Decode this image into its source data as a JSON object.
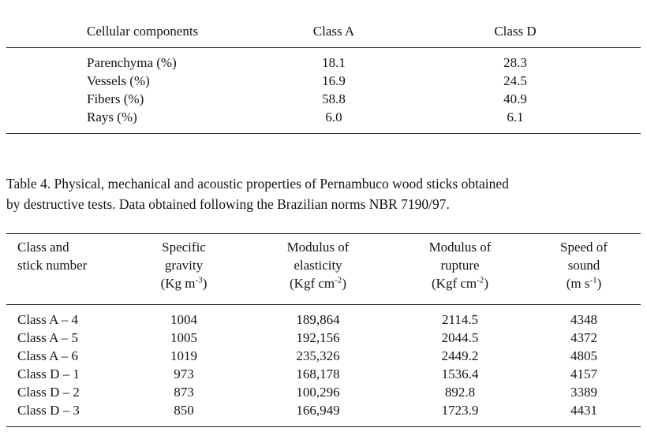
{
  "table1": {
    "headers": {
      "component": "Cellular components",
      "classA": "Class A",
      "classD": "Class D"
    },
    "rows": [
      {
        "label": "Parenchyma (%)",
        "classA": "18.1",
        "classD": "28.3"
      },
      {
        "label": "Vessels (%)",
        "classA": "16.9",
        "classD": "24.5"
      },
      {
        "label": "Fibers (%)",
        "classA": "58.8",
        "classD": "40.9"
      },
      {
        "label": "Rays (%)",
        "classA": "6.0",
        "classD": "6.1"
      }
    ]
  },
  "caption": {
    "line1": "Table 4. Physical, mechanical and acoustic properties of Pernambuco wood sticks obtained",
    "line2": "by destructive tests. Data obtained following the Brazilian norms NBR 7190/97."
  },
  "table2": {
    "headers": [
      {
        "line1": "Class and",
        "line2": "stick number"
      },
      {
        "line1": "Specific",
        "line2": "gravity",
        "unit_pre": "(Kg m",
        "unit_sup": "-3",
        "unit_post": ")"
      },
      {
        "line1": "Modulus of",
        "line2": "elasticity",
        "unit_pre": "(Kgf cm",
        "unit_sup": "-2",
        "unit_post": ")"
      },
      {
        "line1": "Modulus of",
        "line2": "rupture",
        "unit_pre": "(Kgf cm",
        "unit_sup": "-2",
        "unit_post": ")"
      },
      {
        "line1": "Speed of",
        "line2": "sound",
        "unit_pre": "(m s",
        "unit_sup": "-1",
        "unit_post": ")"
      }
    ],
    "rows": [
      {
        "label": "Class A – 4",
        "gravity": "1004",
        "elasticity": "189,864",
        "rupture": "2114.5",
        "sound": "4348"
      },
      {
        "label": "Class A – 5",
        "gravity": "1005",
        "elasticity": "192,156",
        "rupture": "2044.5",
        "sound": "4372"
      },
      {
        "label": "Class A – 6",
        "gravity": "1019",
        "elasticity": "235,326",
        "rupture": "2449.2",
        "sound": "4805"
      },
      {
        "label": "Class D – 1",
        "gravity": "973",
        "elasticity": "168,178",
        "rupture": "1536.4",
        "sound": "4157"
      },
      {
        "label": "Class D – 2",
        "gravity": "873",
        "elasticity": "100,296",
        "rupture": "892.8",
        "sound": "3389"
      },
      {
        "label": "Class D – 3",
        "gravity": "850",
        "elasticity": "166,949",
        "rupture": "1723.9",
        "sound": "4431"
      }
    ]
  }
}
